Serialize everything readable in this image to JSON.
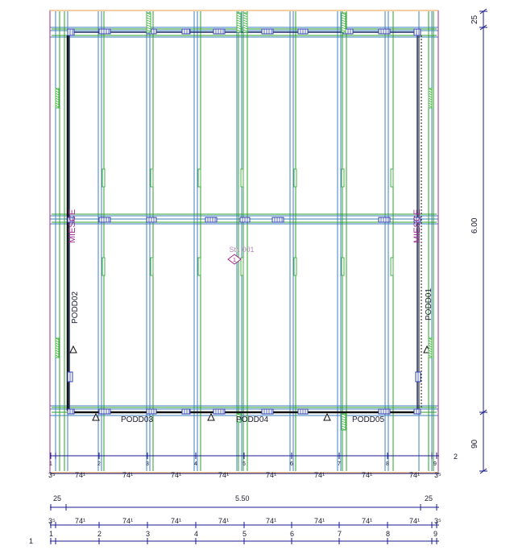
{
  "colors": {
    "background": "#ffffff",
    "grid_blue": "#3f7fbf",
    "member_green": "#2aa02a",
    "frame_dark": "#1f2a66",
    "wall_black": "#111111",
    "dimension": "#1a1a8c",
    "magenta": "#a0288c",
    "hatch_blue": "#2a3fb0",
    "hatch_green": "#46b646",
    "orange": "#e8a040"
  },
  "plan": {
    "center_label": "Str. 001",
    "center_marker": "1",
    "side_labels": {
      "left_top": "MIESCE",
      "right_top": "MIESCE",
      "left_wall": "PODD02",
      "right_wall": "PODD01"
    },
    "bottom_labels": [
      "PODD03",
      "PODD04",
      "PODD05"
    ],
    "axis_small_labels": [
      "1",
      "2",
      "3",
      "4",
      "5",
      "6",
      "7",
      "8",
      "9"
    ]
  },
  "right_dims": {
    "top": "25",
    "middle": "6.00",
    "bottom": "90",
    "corner_number": "2"
  },
  "bottom_dims": {
    "row1_segments": [
      "3⁵",
      "74¹",
      "74¹",
      "74¹",
      "74¹",
      "74¹",
      "74¹",
      "74¹",
      "74¹",
      "3⁵"
    ],
    "row2": {
      "left": "25",
      "middle": "5.50",
      "right": "25"
    },
    "row3_segments": [
      "3⁵",
      "74¹",
      "74¹",
      "74¹",
      "74¹",
      "74¹",
      "74¹",
      "74¹",
      "74¹",
      "3⁵"
    ],
    "axis_numbers": [
      "1",
      "2",
      "3",
      "4",
      "5",
      "6",
      "7",
      "8",
      "9"
    ],
    "row_number": "1"
  }
}
